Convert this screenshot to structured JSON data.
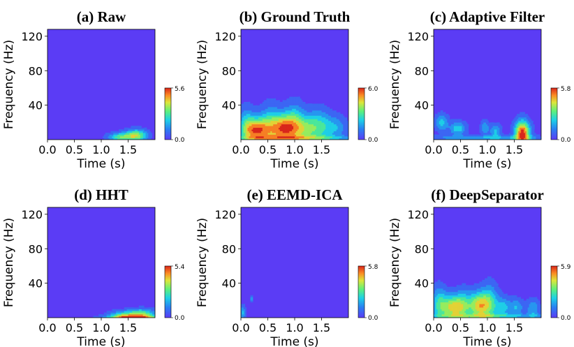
{
  "chart_data": [
    {
      "type": "heatmap",
      "title": "(a) Raw",
      "xlabel": "Time (s)",
      "ylabel": "Frequency (Hz)",
      "xticks": [
        "0.0",
        "0.5",
        "1.0",
        "1.5"
      ],
      "yticks": [
        "40",
        "80",
        "120"
      ],
      "xlim": [
        0,
        2
      ],
      "ylim": [
        0,
        128
      ],
      "colorbar": {
        "min_label": "0.0",
        "max_label": "5.6",
        "min": 0.0,
        "max": 5.6
      },
      "background_color": "#5b3cf5",
      "blobs": [
        {
          "t": 1.35,
          "f": 3,
          "w": 0.22,
          "h": 5,
          "v": 0.5
        },
        {
          "t": 1.65,
          "f": 5,
          "w": 0.2,
          "h": 7,
          "v": 0.65
        }
      ]
    },
    {
      "type": "heatmap",
      "title": "(b) Ground Truth",
      "xlabel": "Time (s)",
      "ylabel": "Frequency (Hz)",
      "xticks": [
        "0.0",
        "0.5",
        "1.0",
        "1.5"
      ],
      "yticks": [
        "40",
        "80",
        "120"
      ],
      "xlim": [
        0,
        2
      ],
      "ylim": [
        0,
        128
      ],
      "colorbar": {
        "min_label": "0.0",
        "max_label": "6.0",
        "min": 0.0,
        "max": 6.0
      },
      "background_color": "#5b3cf5",
      "blobs": [
        {
          "t": 0.1,
          "f": 15,
          "w": 0.15,
          "h": 22,
          "v": 0.35
        },
        {
          "t": 0.3,
          "f": 11,
          "w": 0.22,
          "h": 14,
          "v": 0.85
        },
        {
          "t": 0.55,
          "f": 15,
          "w": 0.2,
          "h": 24,
          "v": 0.4
        },
        {
          "t": 0.8,
          "f": 13,
          "w": 0.22,
          "h": 16,
          "v": 0.8
        },
        {
          "t": 1.0,
          "f": 18,
          "w": 0.18,
          "h": 24,
          "v": 0.4
        },
        {
          "t": 1.2,
          "f": 12,
          "w": 0.2,
          "h": 16,
          "v": 0.45
        },
        {
          "t": 1.45,
          "f": 15,
          "w": 0.2,
          "h": 20,
          "v": 0.4
        },
        {
          "t": 1.75,
          "f": 14,
          "w": 0.22,
          "h": 14,
          "v": 0.3
        },
        {
          "t": 1.0,
          "f": 2,
          "w": 1.2,
          "h": 3,
          "v": 0.35
        }
      ]
    },
    {
      "type": "heatmap",
      "title": "(c) Adaptive Filter",
      "xlabel": "Time (s)",
      "ylabel": "Frequency (Hz)",
      "xticks": [
        "0.0",
        "0.5",
        "1.0",
        "1.5"
      ],
      "yticks": [
        "40",
        "80",
        "120"
      ],
      "xlim": [
        0,
        2
      ],
      "ylim": [
        0,
        128
      ],
      "colorbar": {
        "min_label": "0.0",
        "max_label": "5.8",
        "min": 0.0,
        "max": 5.8
      },
      "background_color": "#5b3cf5",
      "blobs": [
        {
          "t": 0.15,
          "f": 20,
          "w": 0.12,
          "h": 10,
          "v": 0.35
        },
        {
          "t": 0.45,
          "f": 13,
          "w": 0.15,
          "h": 8,
          "v": 0.4
        },
        {
          "t": 0.95,
          "f": 14,
          "w": 0.08,
          "h": 8,
          "v": 0.3
        },
        {
          "t": 1.15,
          "f": 10,
          "w": 0.1,
          "h": 8,
          "v": 0.35
        },
        {
          "t": 1.65,
          "f": 8,
          "w": 0.14,
          "h": 14,
          "v": 1.0
        },
        {
          "t": 1.0,
          "f": 2,
          "w": 1.2,
          "h": 3,
          "v": 0.3
        }
      ]
    },
    {
      "type": "heatmap",
      "title": "(d) HHT",
      "xlabel": "Time (s)",
      "ylabel": "Frequency (Hz)",
      "xticks": [
        "0.0",
        "0.5",
        "1.0",
        "1.5"
      ],
      "yticks": [
        "40",
        "80",
        "120"
      ],
      "xlim": [
        0,
        2
      ],
      "ylim": [
        0,
        128
      ],
      "colorbar": {
        "min_label": "0.0",
        "max_label": "5.4",
        "min": 0.0,
        "max": 5.4
      },
      "background_color": "#5b3cf5",
      "blobs": [
        {
          "t": 1.4,
          "f": 3,
          "w": 0.25,
          "h": 5,
          "v": 0.45
        },
        {
          "t": 1.75,
          "f": 4,
          "w": 0.25,
          "h": 6,
          "v": 0.6
        },
        {
          "t": 1.6,
          "f": 1,
          "w": 0.5,
          "h": 2,
          "v": 0.6
        }
      ]
    },
    {
      "type": "heatmap",
      "title": "(e) EEMD-ICA",
      "xlabel": "Time (s)",
      "ylabel": "Frequency (Hz)",
      "xticks": [
        "0.0",
        "0.5",
        "1.0",
        "1.5"
      ],
      "yticks": [
        "40",
        "80",
        "120"
      ],
      "xlim": [
        0,
        2
      ],
      "ylim": [
        0,
        128
      ],
      "colorbar": {
        "min_label": "0.0",
        "max_label": "5.8",
        "min": 0.0,
        "max": 5.8
      },
      "background_color": "#5b3cf5",
      "blobs": [
        {
          "t": 0.03,
          "f": 6,
          "w": 0.05,
          "h": 8,
          "v": 0.35
        },
        {
          "t": 0.2,
          "f": 22,
          "w": 0.03,
          "h": 3,
          "v": 0.3
        }
      ]
    },
    {
      "type": "heatmap",
      "title": "(f) DeepSeparator",
      "xlabel": "Time (s)",
      "ylabel": "Frequency (Hz)",
      "xticks": [
        "0.0",
        "0.5",
        "1.0",
        "1.5"
      ],
      "yticks": [
        "40",
        "80",
        "120"
      ],
      "xlim": [
        0,
        2
      ],
      "ylim": [
        0,
        128
      ],
      "colorbar": {
        "min_label": "0.0",
        "max_label": "5.9",
        "min": 0.0,
        "max": 5.9
      },
      "background_color": "#5b3cf5",
      "blobs": [
        {
          "t": 0.1,
          "f": 16,
          "w": 0.14,
          "h": 20,
          "v": 0.4
        },
        {
          "t": 0.35,
          "f": 12,
          "w": 0.2,
          "h": 14,
          "v": 0.7
        },
        {
          "t": 0.55,
          "f": 14,
          "w": 0.15,
          "h": 18,
          "v": 0.35
        },
        {
          "t": 0.85,
          "f": 14,
          "w": 0.2,
          "h": 16,
          "v": 0.75
        },
        {
          "t": 1.05,
          "f": 18,
          "w": 0.15,
          "h": 22,
          "v": 0.35
        },
        {
          "t": 1.3,
          "f": 12,
          "w": 0.15,
          "h": 12,
          "v": 0.35
        },
        {
          "t": 1.55,
          "f": 12,
          "w": 0.12,
          "h": 10,
          "v": 0.3
        },
        {
          "t": 1.85,
          "f": 10,
          "w": 0.12,
          "h": 12,
          "v": 0.3
        },
        {
          "t": 1.0,
          "f": 2,
          "w": 1.2,
          "h": 3,
          "v": 0.3
        }
      ]
    }
  ]
}
